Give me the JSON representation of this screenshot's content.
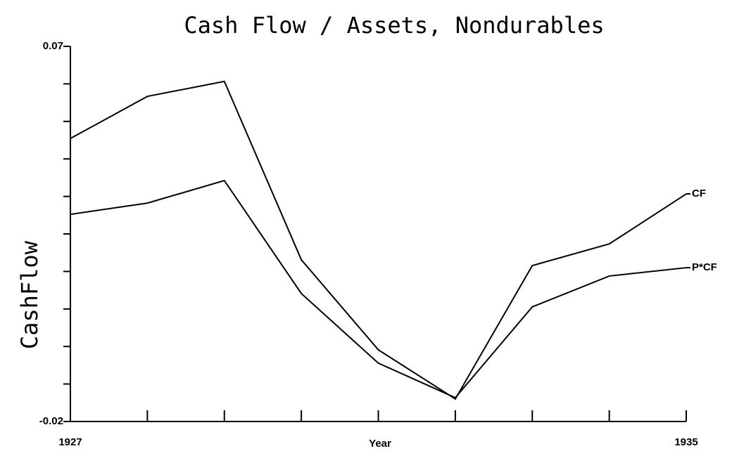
{
  "chart_data": {
    "type": "line",
    "title": "Cash Flow / Assets, Nondurables",
    "xlabel": "Year",
    "ylabel": "CashFlow",
    "x": [
      1927,
      1928,
      1929,
      1930,
      1931,
      1932,
      1933,
      1934,
      1935
    ],
    "series": [
      {
        "name": "CF",
        "color": "#000000",
        "values": [
          0.0479,
          0.058,
          0.0616,
          0.0188,
          -0.0028,
          -0.0146,
          0.0174,
          0.0226,
          0.0346
        ]
      },
      {
        "name": "P*CF",
        "color": "#000000",
        "values": [
          0.0297,
          0.0324,
          0.0378,
          0.0107,
          -0.006,
          -0.0143,
          0.0075,
          0.0149,
          0.0169
        ]
      }
    ],
    "xlim": [
      1927,
      1935
    ],
    "xticks": [
      1927,
      1935
    ],
    "xminorticks": [
      1928,
      1929,
      1930,
      1931,
      1932,
      1933,
      1934
    ],
    "ylim": [
      -0.02,
      0.07
    ],
    "yticks": [
      -0.02,
      0.07
    ],
    "yminorticks": [
      -0.011,
      -0.002,
      0.007,
      0.016,
      0.025,
      0.034,
      0.043,
      0.052,
      0.061
    ],
    "grid": false
  }
}
